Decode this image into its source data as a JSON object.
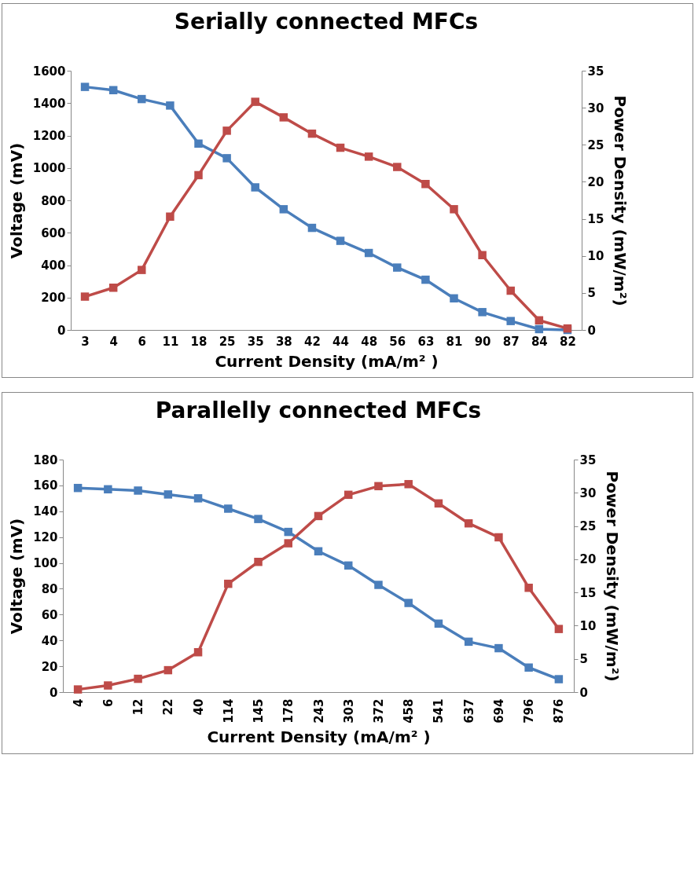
{
  "chart_data": [
    {
      "type": "line",
      "title": "Serially connected MFCs",
      "xlabel": "Current Density (mA/m² )",
      "ylabel": "Voltage (mV)",
      "y2label": "Power Density (mW/m²)",
      "marker": "square",
      "categories": [
        "3",
        "4",
        "6",
        "11",
        "18",
        "25",
        "35",
        "38",
        "42",
        "44",
        "48",
        "56",
        "63",
        "81",
        "90",
        "87",
        "84",
        "82"
      ],
      "ylim": [
        0,
        1600
      ],
      "yticks": [
        0,
        200,
        400,
        600,
        800,
        1000,
        1200,
        1400,
        1600
      ],
      "y2lim": [
        0,
        35
      ],
      "y2ticks": [
        0,
        5,
        10,
        15,
        20,
        25,
        30,
        35
      ],
      "series": [
        {
          "color": "#4a7ebb",
          "values": [
            1500,
            1480,
            1425,
            1385,
            1150,
            1060,
            880,
            745,
            630,
            550,
            475,
            385,
            310,
            195,
            110,
            55,
            5,
            0
          ]
        },
        {
          "color": "#be4b48",
          "axis": "y2",
          "values": [
            4.5,
            5.7,
            8.1,
            15.3,
            20.9,
            26.9,
            30.8,
            28.7,
            26.5,
            24.6,
            23.4,
            22.0,
            19.7,
            16.3,
            10.1,
            5.3,
            1.3,
            0.2
          ]
        }
      ]
    },
    {
      "type": "line",
      "title": "Parallelly connected MFCs",
      "xlabel": "Current Density (mA/m² )",
      "ylabel": "Voltage (mV)",
      "y2label": "Power Density (mW/m²)",
      "marker": "square",
      "categories": [
        "4",
        "6",
        "12",
        "22",
        "40",
        "114",
        "145",
        "178",
        "243",
        "303",
        "372",
        "458",
        "541",
        "637",
        "694",
        "796",
        "876"
      ],
      "ylim": [
        0,
        180
      ],
      "yticks": [
        0,
        20,
        40,
        60,
        80,
        100,
        120,
        140,
        160,
        180
      ],
      "y2lim": [
        0,
        35
      ],
      "y2ticks": [
        0,
        5,
        10,
        15,
        20,
        25,
        30,
        35
      ],
      "series": [
        {
          "color": "#4a7ebb",
          "values": [
            158,
            157,
            156,
            153,
            150,
            142,
            134,
            124,
            109,
            98,
            83,
            69,
            53,
            39,
            34,
            19,
            10
          ]
        },
        {
          "color": "#be4b48",
          "axis": "y2",
          "values": [
            0.4,
            1.0,
            2.0,
            3.3,
            6.0,
            16.3,
            19.6,
            22.4,
            26.5,
            29.7,
            31.0,
            31.3,
            28.4,
            25.4,
            23.3,
            15.7,
            9.5
          ]
        }
      ]
    }
  ]
}
